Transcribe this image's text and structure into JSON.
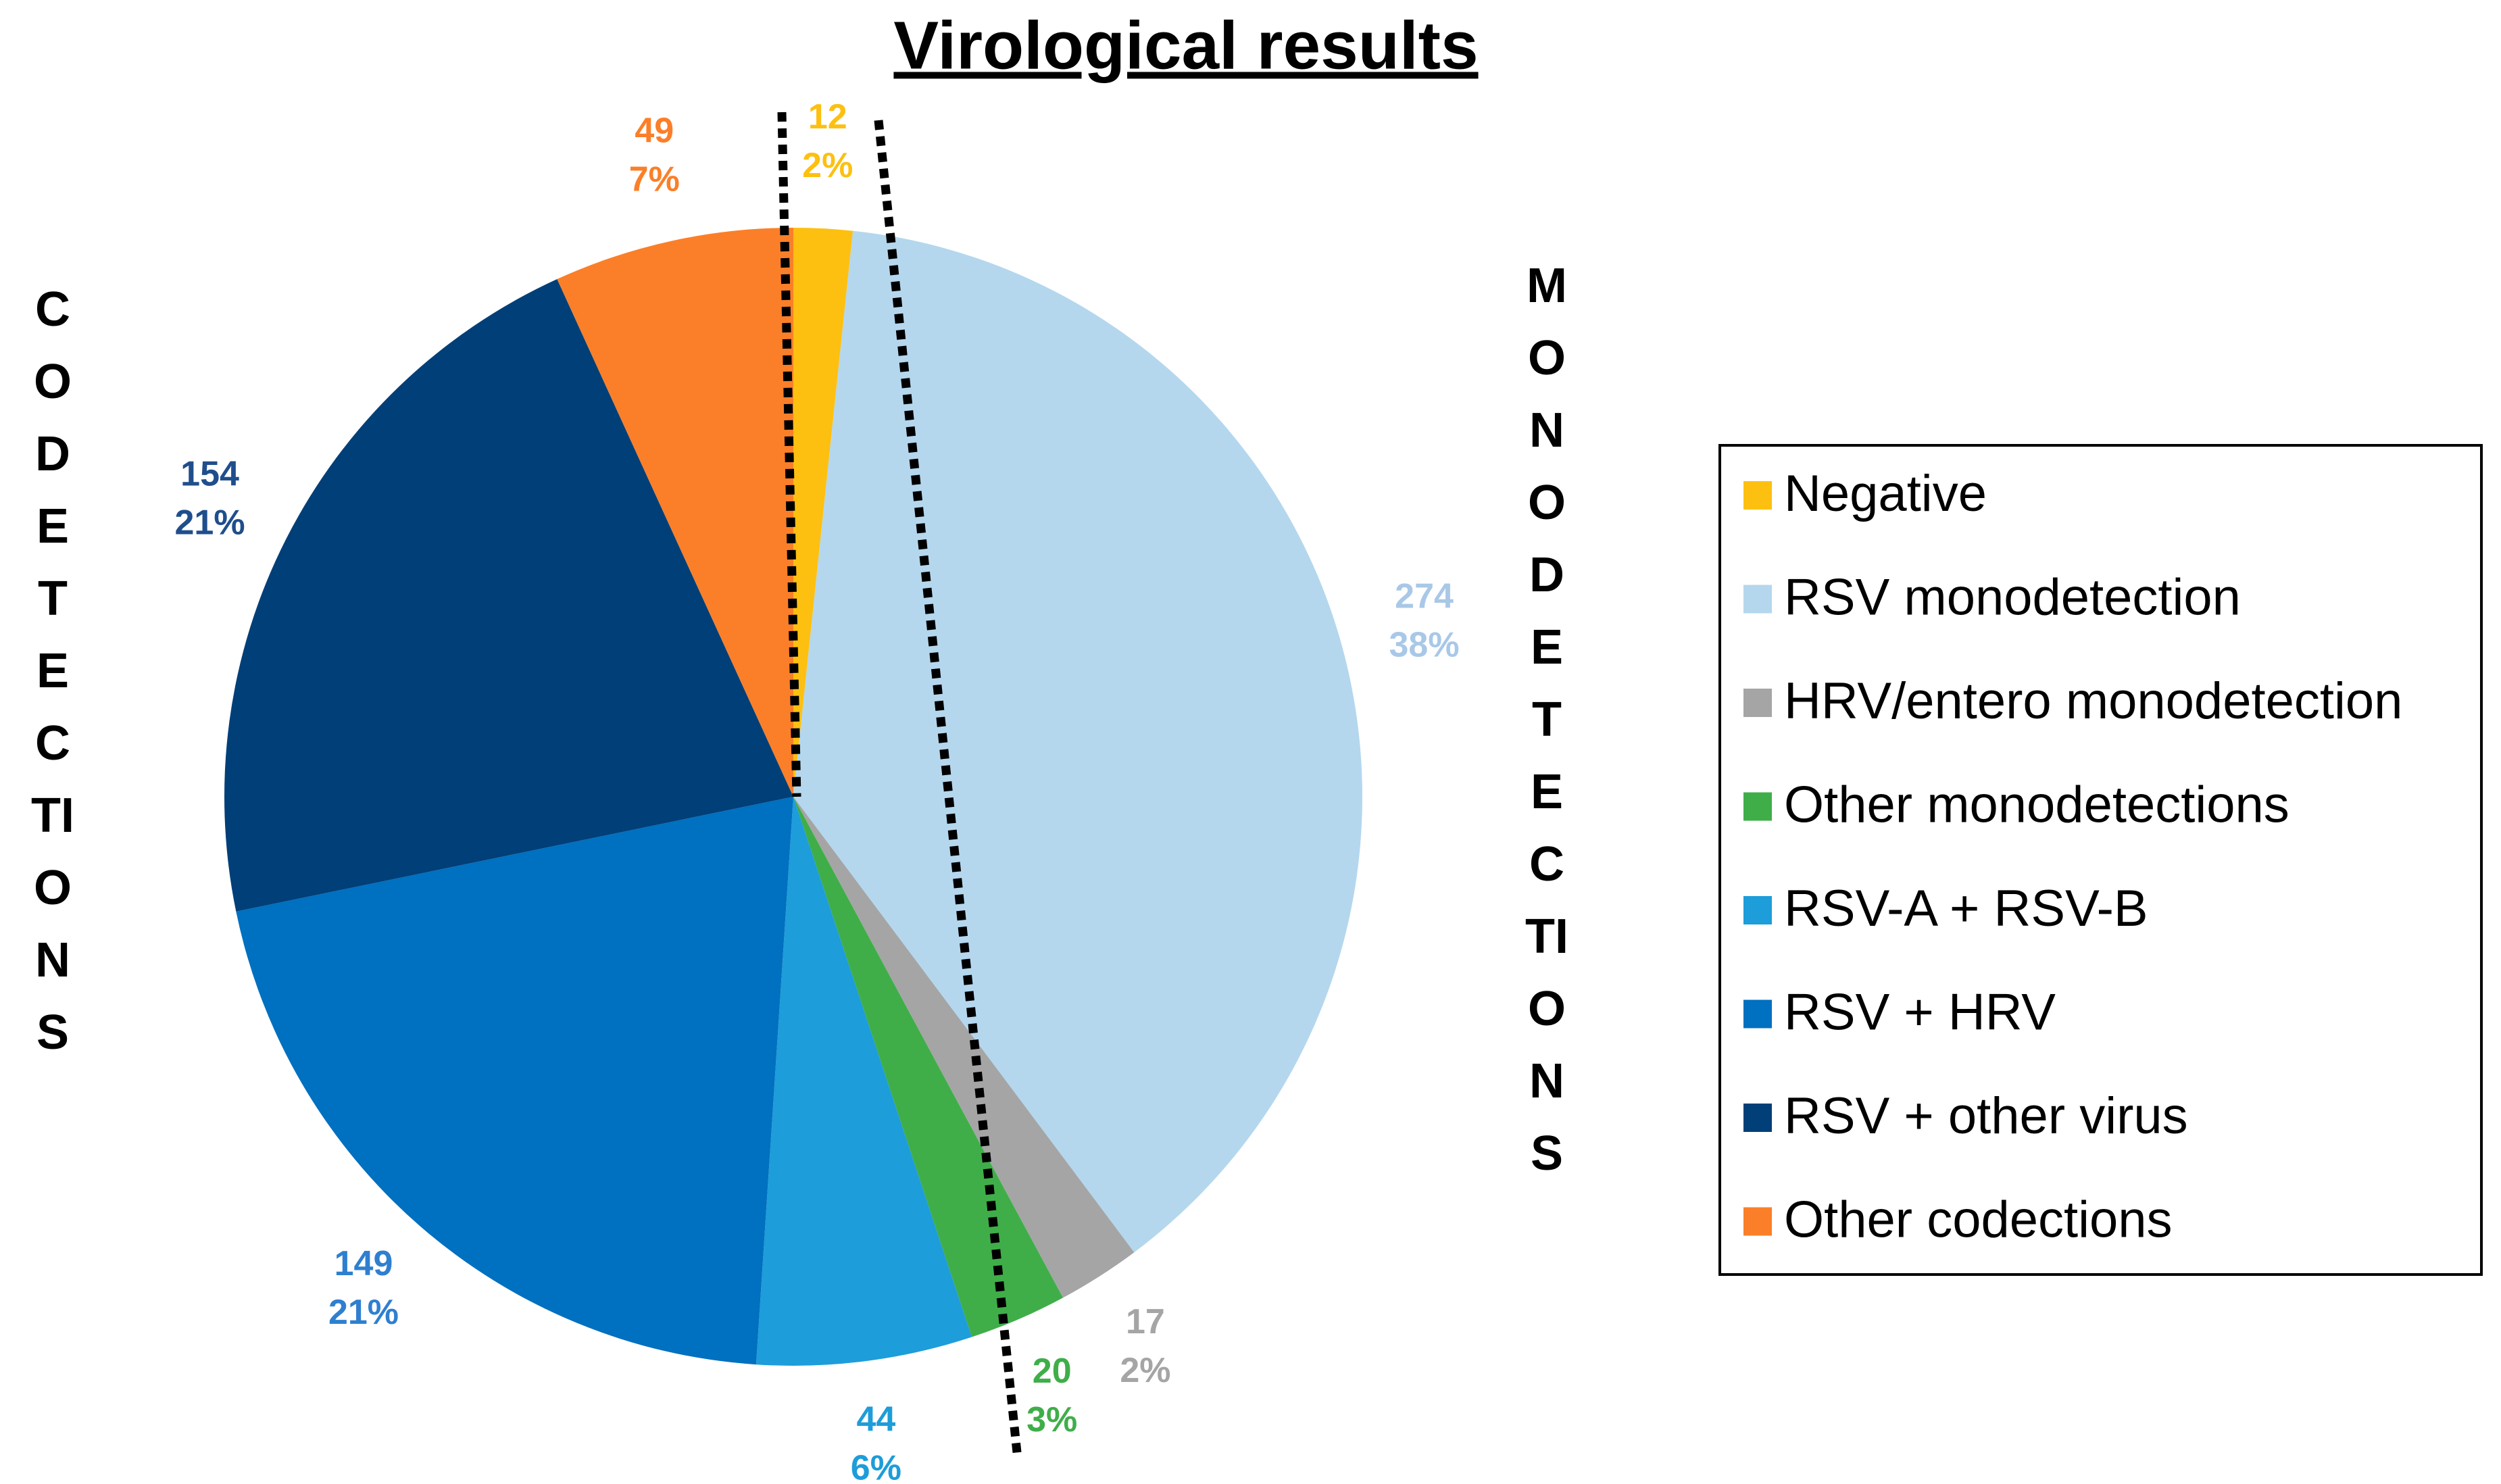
{
  "chart_data": {
    "type": "pie",
    "title": "Virological results",
    "categories": [
      "Negative",
      "RSV monodetection",
      "HRV/entero monodetection",
      "Other monodetections",
      "RSV-A + RSV-B",
      "RSV + HRV",
      "RSV + other virus",
      "Other codections"
    ],
    "values": [
      12,
      274,
      17,
      20,
      44,
      149,
      154,
      49
    ],
    "percent_labels": [
      "2%",
      "38%",
      "2%",
      "3%",
      "6%",
      "21%",
      "21%",
      "7%"
    ],
    "colors": [
      "#fdc010",
      "#b4d7ee",
      "#a5a5a5",
      "#3fae49",
      "#1d9dd9",
      "#0070c0",
      "#003f78",
      "#fb7f28"
    ],
    "label_colors": [
      "#fdc010",
      "#a9c8e8",
      "#a5a5a5",
      "#3fae49",
      "#1d9dd9",
      "#2f7fd0",
      "#1f4e8c",
      "#fb7f28"
    ],
    "legend": "right",
    "side_labels": {
      "left": "CODETECTIONS",
      "right": "MONODETECTIONS"
    }
  }
}
